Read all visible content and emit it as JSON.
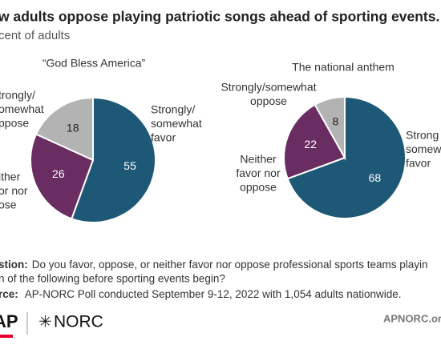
{
  "title": "w adults oppose playing patriotic songs ahead of sporting events.",
  "subtitle": "cent of adults",
  "chart_data": [
    {
      "type": "pie",
      "title": "“God Bless America”",
      "categories": [
        [
          "Strongly/",
          "somewhat",
          "favor"
        ],
        [
          "ither",
          "or nor",
          "ose"
        ],
        [
          "trongly/",
          "omewhat",
          "ppose"
        ]
      ],
      "values": [
        55,
        26,
        18
      ],
      "colors": [
        "#1d5876",
        "#6a2d61",
        "#b3b3b3"
      ]
    },
    {
      "type": "pie",
      "title": "The national anthem",
      "categories": [
        [
          "Strong",
          "somew",
          "favor"
        ],
        [
          "Neither",
          "favor nor",
          "oppose"
        ],
        [
          "Strongly/somewhat",
          "oppose"
        ]
      ],
      "values": [
        68,
        22,
        8
      ],
      "colors": [
        "#1d5876",
        "#6a2d61",
        "#b3b3b3"
      ]
    }
  ],
  "notes": {
    "question_label": "stion:",
    "question": [
      "Do you favor, oppose, or neither favor nor oppose professional sports teams playin",
      "n of the following before sporting events begin?"
    ],
    "source_label": "rce:",
    "source": "AP-NORC Poll conducted September 9-12, 2022 with 1,054 adults nationwide."
  },
  "logos": {
    "ap": "AP",
    "norc": "NORC",
    "site": "APNORC.or"
  }
}
